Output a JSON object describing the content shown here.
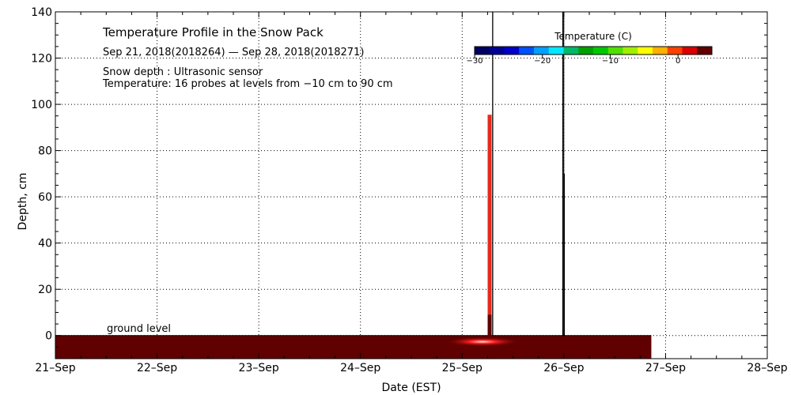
{
  "chart_data": {
    "type": "heatmap",
    "title": "Temperature Profile in the Snow Pack",
    "date_range": "Sep 21, 2018(2018264) — Sep 28, 2018(2018271)",
    "snow_depth_note": "Snow depth : Ultrasonic sensor",
    "temperature_note": "Temperature: 16 probes at levels from −10 cm to 90 cm",
    "xlabel": "Date (EST)",
    "ylabel": "Depth, cm",
    "ground_label": "ground level",
    "xlim": [
      0,
      7
    ],
    "ylim": [
      -10,
      140
    ],
    "x_tick_labels": [
      "21–Sep",
      "22–Sep",
      "23–Sep",
      "24–Sep",
      "25–Sep",
      "26–Sep",
      "27–Sep",
      "28–Sep"
    ],
    "y_ticks": [
      0,
      20,
      40,
      60,
      80,
      100,
      120,
      140
    ],
    "grid": true,
    "colorbar": {
      "label": "Temperature (C)",
      "range": [
        -30,
        5
      ],
      "tick_values": [
        -30,
        -20,
        -10,
        0
      ],
      "tick_labels": [
        "−30",
        "−20",
        "−10",
        "0"
      ],
      "colors": [
        "#000060",
        "#000090",
        "#0000c8",
        "#0050ff",
        "#00a0ff",
        "#00e8ff",
        "#00b868",
        "#00a000",
        "#00c800",
        "#50e000",
        "#a0f000",
        "#ffff00",
        "#ffb000",
        "#ff4000",
        "#d80000",
        "#600000"
      ]
    },
    "ground_layer": {
      "x_start": 0,
      "x_end": 5.86,
      "depth_from": -10,
      "depth_to": 0,
      "temperature_c": 3,
      "color": "#600000"
    },
    "warm_spot": {
      "x_center": 4.2,
      "x_halfwidth": 0.37,
      "depth": -2,
      "color": "#ff2020"
    },
    "events": [
      {
        "x": 4.27,
        "depth_to": 95.5,
        "color": "#e52a1c",
        "type": "probe-column"
      },
      {
        "x": 4.27,
        "depth_to": 9,
        "color": "#600000",
        "type": "probe-column-base"
      },
      {
        "x": 4.3,
        "depth_to": 140,
        "color": "#000000",
        "type": "depth-line"
      },
      {
        "x": 4.99,
        "depth_to": 140,
        "color": "#000000",
        "type": "depth-line"
      },
      {
        "x": 5.005,
        "depth_to": 70,
        "color": "#000000",
        "type": "depth-line"
      }
    ]
  }
}
